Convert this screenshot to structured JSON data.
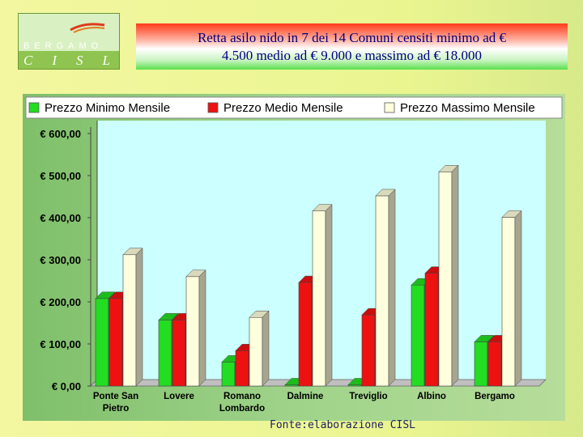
{
  "logo": {
    "word": "BERGAMO",
    "letters": "CISL"
  },
  "title": {
    "line1": "Retta asilo nido  in 7 dei 14 Comuni censiti minimo ad €",
    "line2": "4.500 medio ad € 9.000 e massimo ad  € 18.000"
  },
  "source": "Fonte:elaborazione CISL",
  "colors": {
    "min": "#22dd22",
    "med": "#ee1111",
    "max": "#ffffdd",
    "plot_bg": "#ccffff"
  },
  "chart_data": {
    "type": "bar",
    "categories": [
      "Ponte San Pietro",
      "Lovere",
      "Romano Lombardo",
      "Dalmine",
      "Treviglio",
      "Albino",
      "Bergamo"
    ],
    "category_lines": [
      [
        "Ponte San",
        "Pietro"
      ],
      [
        "Lovere"
      ],
      [
        "Romano",
        "Lombardo"
      ],
      [
        "Dalmine"
      ],
      [
        "Treviglio"
      ],
      [
        "Albino"
      ],
      [
        "Bergamo"
      ]
    ],
    "series": [
      {
        "name": "Prezzo Minimo Mensile",
        "values": [
          208,
          157,
          57,
          0,
          0,
          240,
          105
        ]
      },
      {
        "name": "Prezzo Medio  Mensile",
        "values": [
          208,
          157,
          84,
          246,
          169,
          268,
          105
        ]
      },
      {
        "name": "Prezzo Massimo Mensile",
        "values": [
          312,
          260,
          163,
          416,
          452,
          509,
          401
        ]
      }
    ],
    "y_ticks": [
      "€ 0,00",
      "€ 100,00",
      "€ 200,00",
      "€ 300,00",
      "€ 400,00",
      "€ 500,00",
      "€ 600,00"
    ],
    "ylim": [
      0,
      600
    ],
    "legend_position": "top",
    "grid": false
  }
}
